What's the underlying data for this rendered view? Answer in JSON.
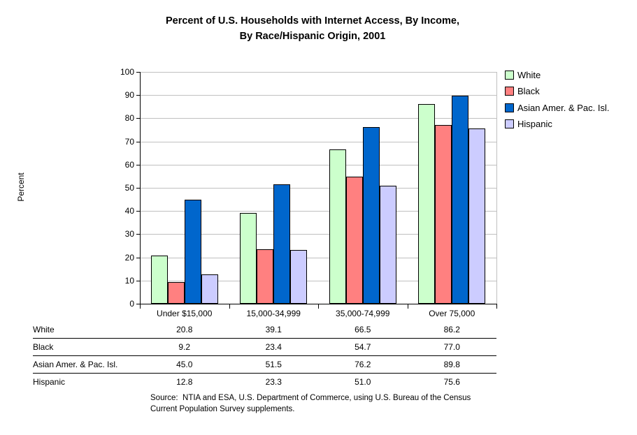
{
  "title": {
    "line1": "Percent of U.S. Households with Internet Access, By Income,",
    "line2": "By Race/Hispanic Origin, 2001"
  },
  "chart_data": {
    "type": "bar",
    "title": "Percent of U.S. Households with Internet Access, By Income, By Race/Hispanic Origin, 2001",
    "categories": [
      "Under $15,000",
      "15,000-34,999",
      "35,000-74,999",
      "Over 75,000"
    ],
    "series": [
      {
        "name": "White",
        "color": "#CCFFCC",
        "values": [
          20.8,
          39.1,
          66.5,
          86.2
        ]
      },
      {
        "name": "Black",
        "color": "#FF8080",
        "values": [
          9.2,
          23.4,
          54.7,
          77.0
        ]
      },
      {
        "name": "Asian Amer. & Pac. Isl.",
        "color": "#0066CC",
        "values": [
          45.0,
          51.5,
          76.2,
          89.8
        ]
      },
      {
        "name": "Hispanic",
        "color": "#CCCCFF",
        "values": [
          12.8,
          23.3,
          51.0,
          75.6
        ]
      }
    ],
    "xlabel": "",
    "ylabel": "Percent",
    "ylim": [
      0,
      100
    ],
    "y_step": 10,
    "grid": true,
    "gridline_color": "#c0c0c0",
    "bar_border_color": "#000000",
    "legend_position": "right"
  },
  "y_axis": {
    "label": "Percent",
    "tick_labels": [
      "0",
      "10",
      "20",
      "30",
      "40",
      "50",
      "60",
      "70",
      "80",
      "90",
      "100"
    ]
  },
  "table": {
    "rows": [
      {
        "label": "White",
        "values": [
          "20.8",
          "39.1",
          "66.5",
          "86.2"
        ]
      },
      {
        "label": "Black",
        "values": [
          "9.2",
          "23.4",
          "54.7",
          "77.0"
        ]
      },
      {
        "label": "Asian Amer. & Pac. Isl.",
        "values": [
          "45.0",
          "51.5",
          "76.2",
          "89.8"
        ]
      },
      {
        "label": "Hispanic",
        "values": [
          "12.8",
          "23.3",
          "51.0",
          "75.6"
        ]
      }
    ]
  },
  "source": {
    "line1": "Source:  NTIA and ESA, U.S. Department of Commerce, using U.S. Bureau of the Census",
    "line2": "Current Population Survey supplements."
  }
}
